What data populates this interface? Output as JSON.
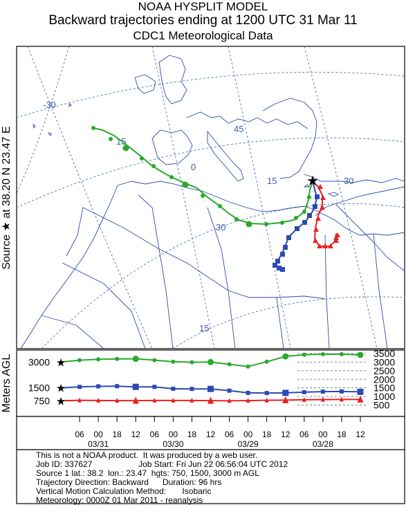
{
  "header": {
    "line1": "NOAA HYSPLIT MODEL",
    "line2": "Backward trajectories ending at 1200 UTC 31 Mar 11",
    "line3": "CDC1 Meteorological Data"
  },
  "map": {
    "source_label": "Source ★ at   38.20 N   23.47 E",
    "grid_labels": [
      "-30",
      "15",
      "45",
      "0",
      "15",
      "30",
      "30",
      "15"
    ]
  },
  "chart_data": {
    "type": "line",
    "title": "Backward trajectories ending at 1200 UTC 31 Mar 11",
    "ylabel": "Meters AGL",
    "ylim": [
      0,
      3700
    ],
    "yticks_right": [
      500,
      1000,
      1500,
      2000,
      2500,
      3000,
      3500
    ],
    "yticks_left": [
      750,
      1500,
      3000
    ],
    "xtick_labels": [
      "06",
      "00",
      "18",
      "12",
      "06",
      "00",
      "18",
      "12",
      "06",
      "00",
      "18",
      "12",
      "06",
      "00",
      "18",
      "12"
    ],
    "date_labels": [
      "03/31",
      "03/30",
      "03/29",
      "03/28"
    ],
    "x_hours_before_end": [
      0,
      6,
      12,
      18,
      24,
      30,
      36,
      42,
      48,
      54,
      60,
      66,
      72,
      78,
      84,
      90,
      96
    ],
    "series": [
      {
        "color": "#e82020",
        "marker": "triangle",
        "values": [
          750,
          780,
          770,
          760,
          760,
          770,
          770,
          770,
          760,
          750,
          760,
          780,
          790,
          810,
          820,
          830,
          830
        ]
      },
      {
        "color": "#2b4bb0",
        "marker": "square",
        "values": [
          1500,
          1560,
          1590,
          1600,
          1560,
          1560,
          1450,
          1440,
          1440,
          1340,
          1210,
          1200,
          1210,
          1250,
          1280,
          1290,
          1270
        ]
      },
      {
        "color": "#2aa82a",
        "marker": "circle",
        "values": [
          3000,
          3110,
          3160,
          3180,
          3190,
          3110,
          3020,
          2990,
          3000,
          2870,
          2740,
          3020,
          3330,
          3430,
          3460,
          3460,
          3420
        ]
      }
    ]
  },
  "footer": {
    "line1": "This is not a NOAA product.  It was produced by a web user.",
    "line2": "Job ID: 337627                    Job Start: Fri Jun 22 06:56:04 UTC 2012",
    "line3": "Source 1 lat.: 38.2  lon.: 23.47  hgts: 750, 1500, 3000 m AGL",
    "line4": "Trajectory Direction: Backward      Duration: 96 hrs",
    "line5": "Vertical Motion Calculation Method:       Isobaric",
    "line6": "Meteorology: 0000Z 01 Mar 2011 - reanalysis"
  }
}
